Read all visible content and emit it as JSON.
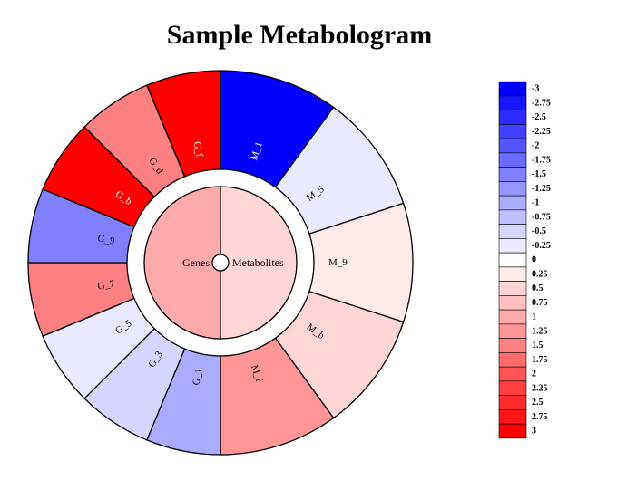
{
  "chart_data": {
    "type": "metabologram",
    "title": "Sample Metabologram",
    "center": {
      "left_label": "Genes",
      "left_value": 1.0,
      "right_label": "Metabolites",
      "right_value": 0.5
    },
    "metabolites": [
      {
        "label": "M_1",
        "value": -3
      },
      {
        "label": "M_5",
        "value": -0.25
      },
      {
        "label": "M_9",
        "value": 0.25
      },
      {
        "label": "M_b",
        "value": 0.5
      },
      {
        "label": "M_f",
        "value": 1.25
      }
    ],
    "genes": [
      {
        "label": "G_1",
        "value": -1
      },
      {
        "label": "G_3",
        "value": -0.5
      },
      {
        "label": "G_5",
        "value": -0.25
      },
      {
        "label": "G_7",
        "value": 1.5
      },
      {
        "label": "G_9",
        "value": -1.5
      },
      {
        "label": "G_b",
        "value": 3
      },
      {
        "label": "G_d",
        "value": 1.5
      },
      {
        "label": "G_f",
        "value": 3
      }
    ],
    "legend": {
      "ticks": [
        "-3",
        "-2.75",
        "-2.5",
        "-2.25",
        "-2",
        "-1.75",
        "-1.5",
        "-1.25",
        "-1",
        "-0.75",
        "-0.5",
        "-0.25",
        "0",
        "0.25",
        "0.5",
        "0.75",
        "1",
        "1.25",
        "1.5",
        "1.75",
        "2",
        "2.25",
        "2.5",
        "2.75",
        "3"
      ],
      "min": -3,
      "max": 3,
      "placement": "right"
    },
    "colors": {
      "negative": "#0000ff",
      "neutral": "#ffffff",
      "positive": "#ff0000",
      "outline": "#000000"
    }
  }
}
